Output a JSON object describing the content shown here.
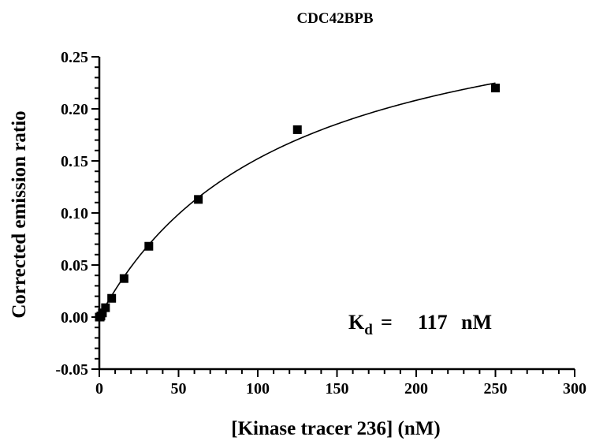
{
  "chart_data": {
    "type": "scatter",
    "title": "CDC42BPB",
    "xlabel": "[Kinase tracer 236] (nM)",
    "ylabel": "Corrected emission ratio",
    "xlim": [
      0,
      300
    ],
    "ylim": [
      -0.05,
      0.25
    ],
    "x_ticks": [
      0,
      50,
      100,
      150,
      200,
      250,
      300
    ],
    "x_tick_labels": [
      "0",
      "50",
      "100",
      "150",
      "200",
      "250",
      "300"
    ],
    "y_ticks": [
      -0.05,
      0.0,
      0.05,
      0.1,
      0.15,
      0.2,
      0.25
    ],
    "y_tick_labels": [
      "-0.05",
      "0.00",
      "0.05",
      "0.10",
      "0.15",
      "0.20",
      "0.25"
    ],
    "grid": false,
    "series": [
      {
        "points": [
          {
            "x": 0,
            "y": 0.0
          },
          {
            "x": 0.49,
            "y": 0.0
          },
          {
            "x": 0.98,
            "y": 0.001
          },
          {
            "x": 1.95,
            "y": 0.004
          },
          {
            "x": 3.9,
            "y": 0.009
          },
          {
            "x": 7.8,
            "y": 0.018
          },
          {
            "x": 15.6,
            "y": 0.037
          },
          {
            "x": 31.25,
            "y": 0.068
          },
          {
            "x": 62.5,
            "y": 0.113
          },
          {
            "x": 125,
            "y": 0.18
          },
          {
            "x": 250,
            "y": 0.22
          }
        ]
      }
    ],
    "fit": {
      "model": "one-site binding",
      "bmax": 0.33,
      "kd": 117,
      "x_range": [
        0,
        250
      ]
    },
    "annotation": {
      "k_main": "K",
      "k_sub": "d",
      "equals": "=",
      "value": "117",
      "unit": "nM"
    }
  }
}
